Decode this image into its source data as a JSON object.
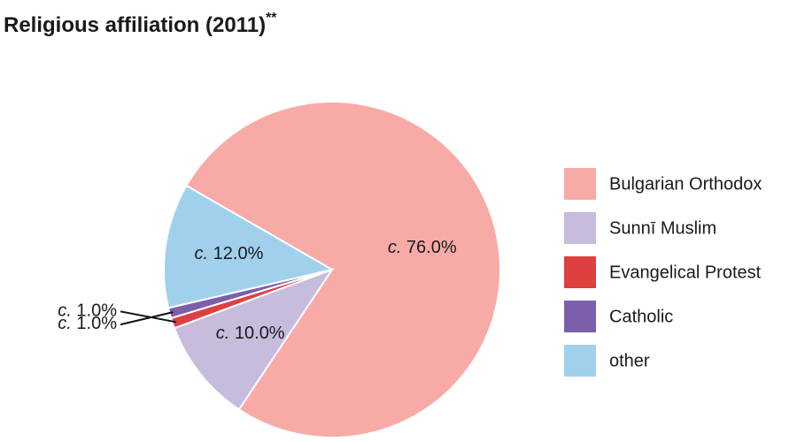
{
  "chart_data": {
    "type": "pie",
    "title": "Religious affiliation (2011)",
    "title_mark": "**",
    "categories": [
      "Bulgarian Orthodox",
      "Sunnī Muslim",
      "Evangelical Protest",
      "Catholic",
      "other"
    ],
    "values": [
      76,
      10,
      1,
      1,
      12
    ],
    "value_labels": [
      "c. 76.0%",
      "c. 10.0%",
      "c. 1.0%",
      "c. 1.0%",
      "c. 12.0%"
    ],
    "colors": [
      "#f7aaa6",
      "#c8bcdc",
      "#de4040",
      "#7c5fab",
      "#a0d0ec"
    ],
    "legend": "right"
  }
}
